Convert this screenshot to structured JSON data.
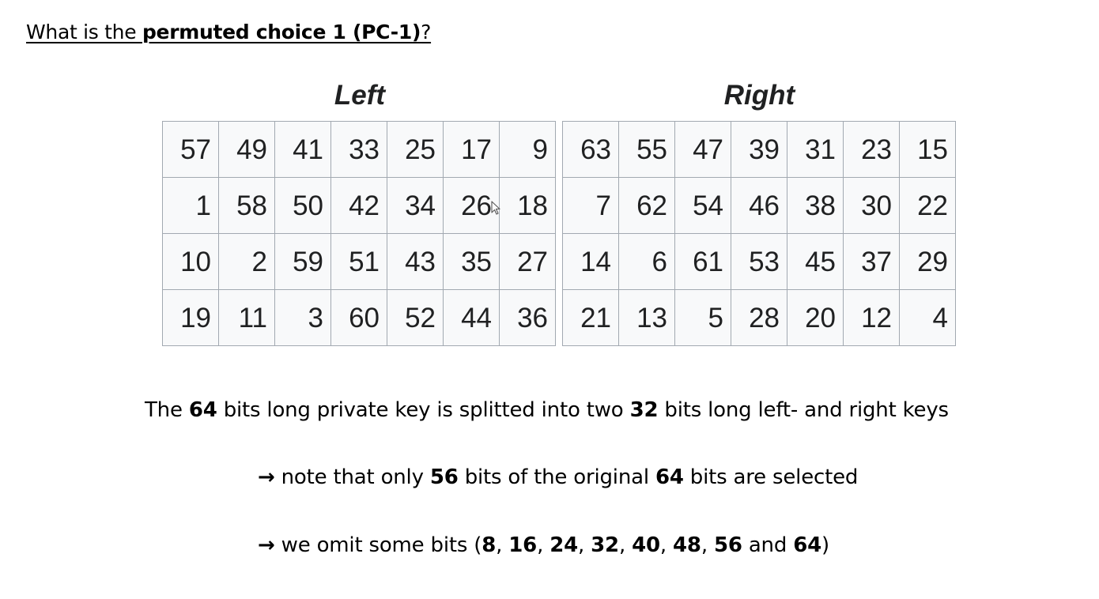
{
  "title": {
    "prefix": "What is the ",
    "bold": "permuted choice 1 (PC-1)",
    "suffix": "?"
  },
  "tables": {
    "left": {
      "caption": "Left",
      "rows": [
        [
          "57",
          "49",
          "41",
          "33",
          "25",
          "17",
          "9"
        ],
        [
          "1",
          "58",
          "50",
          "42",
          "34",
          "26",
          "18"
        ],
        [
          "10",
          "2",
          "59",
          "51",
          "43",
          "35",
          "27"
        ],
        [
          "19",
          "11",
          "3",
          "60",
          "52",
          "44",
          "36"
        ]
      ]
    },
    "right": {
      "caption": "Right",
      "rows": [
        [
          "63",
          "55",
          "47",
          "39",
          "31",
          "23",
          "15"
        ],
        [
          "7",
          "62",
          "54",
          "46",
          "38",
          "30",
          "22"
        ],
        [
          "14",
          "6",
          "61",
          "53",
          "45",
          "37",
          "29"
        ],
        [
          "21",
          "13",
          "5",
          "28",
          "20",
          "12",
          "4"
        ]
      ]
    }
  },
  "paragraphs": {
    "p1": {
      "t1": "The ",
      "b1": "64",
      "t2": " bits long private key is splitted into two ",
      "b2": "32",
      "t3": " bits long left- and right keys"
    },
    "p2": {
      "arrow": "→",
      "t1": " note that only ",
      "b1": "56",
      "t2": " bits of the original ",
      "b2": "64",
      "t3": " bits are selected"
    },
    "p3": {
      "arrow": "→",
      "t1": " we omit some bits (",
      "b1": "8",
      "s1": ", ",
      "b2": "16",
      "s2": ", ",
      "b3": "24",
      "s3": ", ",
      "b4": "32",
      "s4": ", ",
      "b5": "40",
      "s5": ", ",
      "b6": "48",
      "s6": ", ",
      "b7": "56",
      "t2": " and ",
      "b8": "64",
      "t3": ")"
    }
  },
  "colors": {
    "cell_border": "#a2a9b1",
    "cell_background": "#f8f9fa",
    "table_text": "#202122",
    "body_text": "#000000"
  }
}
